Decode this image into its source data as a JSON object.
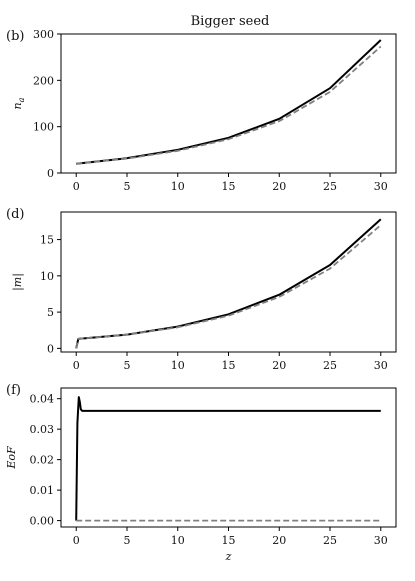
{
  "chart_data": [
    {
      "type": "line",
      "panel_label": "(b)",
      "title": "Bigger seed",
      "xlabel": "",
      "ylabel": "n_a",
      "xlim": [
        -1.5,
        31.5
      ],
      "ylim": [
        0,
        300
      ],
      "xticks": [
        0,
        5,
        10,
        15,
        20,
        25,
        30
      ],
      "yticks": [
        0,
        100,
        200,
        300
      ],
      "grid": false,
      "series": [
        {
          "style": "solid",
          "color": "#000000",
          "x": [
            0,
            5,
            10,
            15,
            20,
            25,
            30
          ],
          "y": [
            20,
            32,
            50,
            76,
            117,
            183,
            287
          ]
        },
        {
          "style": "dashed",
          "color": "#808080",
          "x": [
            0,
            5,
            10,
            15,
            20,
            25,
            30
          ],
          "y": [
            20,
            31,
            48,
            73,
            112,
            175,
            273
          ]
        }
      ]
    },
    {
      "type": "line",
      "panel_label": "(d)",
      "title": "",
      "xlabel": "",
      "ylabel": "|m|",
      "xlim": [
        -1.5,
        31.5
      ],
      "ylim": [
        -0.5,
        18.8
      ],
      "xticks": [
        0,
        5,
        10,
        15,
        20,
        25,
        30
      ],
      "yticks": [
        0,
        5,
        10,
        15
      ],
      "grid": false,
      "series": [
        {
          "style": "solid",
          "color": "#000000",
          "x": [
            0,
            0.2,
            5,
            10,
            15,
            20,
            25,
            30
          ],
          "y": [
            0,
            1.3,
            1.9,
            3.0,
            4.7,
            7.4,
            11.5,
            17.8
          ]
        },
        {
          "style": "dashed",
          "color": "#808080",
          "x": [
            0,
            0.2,
            5,
            10,
            15,
            20,
            25,
            30
          ],
          "y": [
            0,
            1.3,
            1.9,
            2.9,
            4.5,
            7.1,
            11.0,
            17.0
          ]
        }
      ]
    },
    {
      "type": "line",
      "panel_label": "(f)",
      "title": "",
      "xlabel": "z",
      "ylabel": "EoF",
      "xlim": [
        -1.5,
        31.5
      ],
      "ylim": [
        -0.0021,
        0.0435
      ],
      "xticks": [
        0,
        5,
        10,
        15,
        20,
        25,
        30
      ],
      "yticks": [
        0.0,
        0.01,
        0.02,
        0.03,
        0.04
      ],
      "ytick_labels": [
        "0.00",
        "0.01",
        "0.02",
        "0.03",
        "0.04"
      ],
      "grid": false,
      "series": [
        {
          "style": "solid",
          "color": "#000000",
          "x": [
            0,
            0.12,
            0.25,
            0.35,
            0.45,
            0.6,
            0.8,
            30
          ],
          "y": [
            0,
            0.032,
            0.0405,
            0.039,
            0.0365,
            0.036,
            0.036,
            0.036
          ]
        },
        {
          "style": "dashed",
          "color": "#808080",
          "x": [
            0,
            30
          ],
          "y": [
            0,
            0
          ]
        }
      ]
    }
  ]
}
